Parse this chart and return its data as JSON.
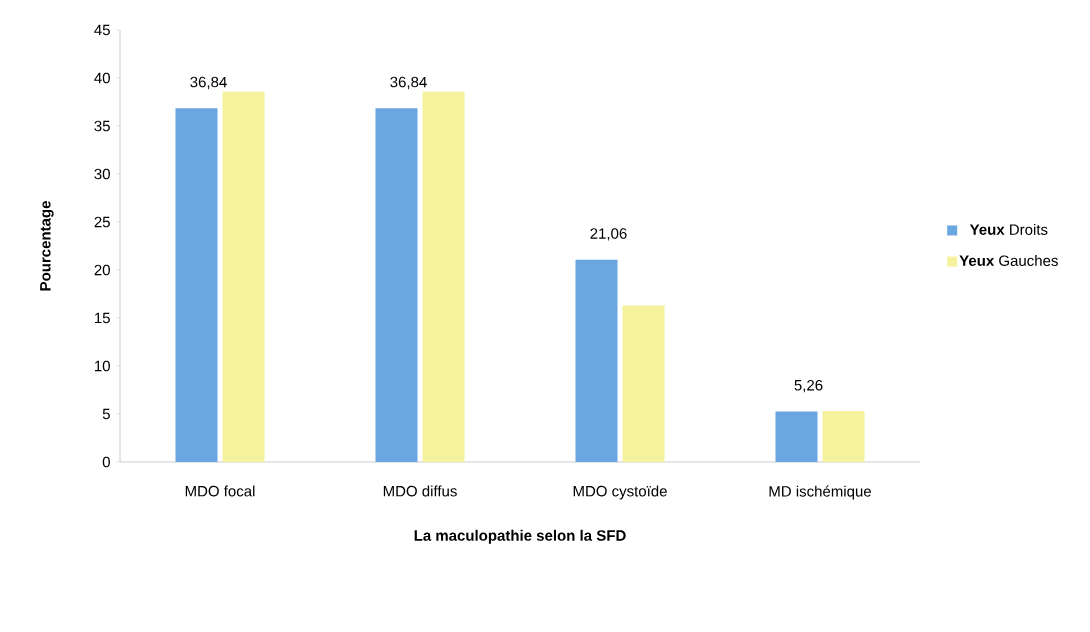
{
  "chart_data": {
    "type": "bar",
    "xlabel": "La maculopathie selon la **SFD**",
    "ylabel": "Pourcentage",
    "categories": [
      "MDO focal",
      "MDO diffus",
      "MDO cystoïde",
      "MD ischémique"
    ],
    "series": [
      {
        "name": "**Yeux** Droits",
        "color": "#6aa6e0",
        "values": [
          36.84,
          36.84,
          21.06,
          5.26
        ],
        "value_labels": [
          "36,84",
          "36,84",
          "21,06",
          "5,26"
        ]
      },
      {
        "name": "**Yeux** Gauches",
        "color": "#f4f29c",
        "values": [
          38.6,
          38.6,
          16.3,
          5.3
        ]
      }
    ],
    "ylim": [
      0,
      45
    ],
    "yticks": [
      0,
      5,
      10,
      15,
      20,
      25,
      30,
      35,
      40,
      45
    ],
    "grid": false,
    "legend": "right"
  }
}
